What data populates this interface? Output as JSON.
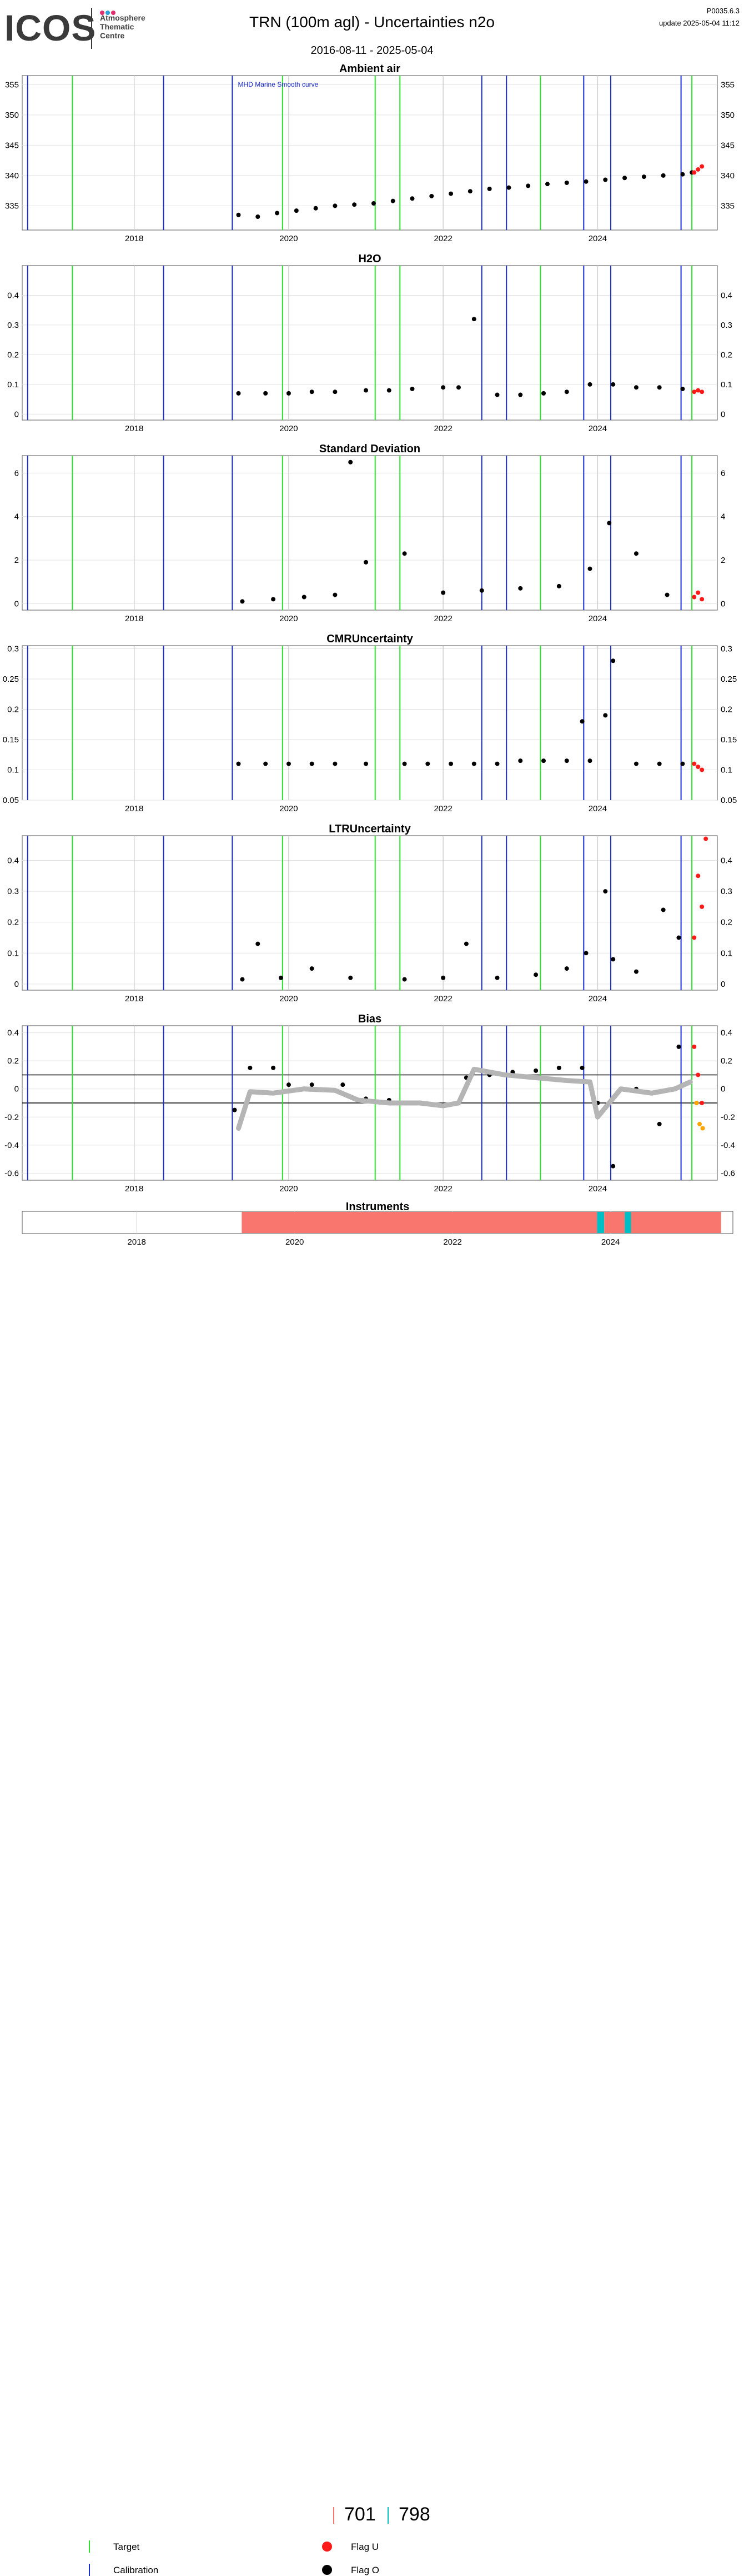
{
  "header": {
    "logo_text": "ICOS",
    "logo_subtitle": "Atmosphere\nThematic\nCentre",
    "title": "TRN  (100m agl) - Uncertainties n2o",
    "date_range": "2016-08-11 - 2025-05-04",
    "version": "P0035.6.3",
    "update": "update  2025-05-04 11:12"
  },
  "colors": {
    "target": "#2ee02e",
    "calibration": "#1a2ccc",
    "flag_u": "#ff1a1a",
    "flag_o": "#000000",
    "bias_smooth": "#b5b5b5",
    "bias_orange": "#ffa500",
    "instrument_701": "#f8766d",
    "instrument_798": "#00bfc4"
  },
  "x_axis": {
    "ticks": [
      2018,
      2020,
      2022,
      2024
    ],
    "range": [
      2016.55,
      2025.55
    ]
  },
  "markers": {
    "calibration": [
      2016.62,
      2018.38,
      2019.27,
      2022.5,
      2022.82,
      2023.82,
      2024.17,
      2025.08
    ],
    "target": [
      2017.2,
      2019.92,
      2021.12,
      2021.44,
      2023.26,
      2025.22
    ]
  },
  "chart_data": [
    {
      "type": "scatter",
      "title": "Ambient air",
      "annotation": "MHD Marine Smooth curve",
      "ylim": [
        331,
        356.5
      ],
      "yticks": [
        335,
        340,
        345,
        350,
        355
      ],
      "grid": true,
      "series": [
        {
          "name": "Flag O",
          "x": [
            2019.35,
            2019.6,
            2019.85,
            2020.1,
            2020.35,
            2020.6,
            2020.85,
            2021.1,
            2021.35,
            2021.6,
            2021.85,
            2022.1,
            2022.35,
            2022.6,
            2022.85,
            2023.1,
            2023.35,
            2023.6,
            2023.85,
            2024.1,
            2024.35,
            2024.6,
            2024.85,
            2025.1,
            2025.22
          ],
          "y": [
            333.5,
            333.2,
            333.8,
            334.2,
            334.6,
            335.0,
            335.2,
            335.4,
            335.8,
            336.2,
            336.6,
            337.0,
            337.4,
            337.8,
            338.0,
            338.3,
            338.6,
            338.8,
            339.0,
            339.3,
            339.6,
            339.8,
            340.0,
            340.2,
            340.5
          ]
        },
        {
          "name": "Flag U",
          "x": [
            2025.25,
            2025.3,
            2025.35
          ],
          "y": [
            340.5,
            341.0,
            341.5
          ]
        }
      ]
    },
    {
      "type": "scatter",
      "title": "H2O",
      "ylim": [
        -0.02,
        0.5
      ],
      "yticks": [
        0.0,
        0.1,
        0.2,
        0.3,
        0.4
      ],
      "grid": true,
      "series": [
        {
          "name": "Flag O",
          "x": [
            2019.35,
            2019.7,
            2020.0,
            2020.3,
            2020.6,
            2021.0,
            2021.3,
            2021.6,
            2022.0,
            2022.2,
            2022.4,
            2022.7,
            2023.0,
            2023.3,
            2023.6,
            2023.9,
            2024.2,
            2024.5,
            2024.8,
            2025.1
          ],
          "y": [
            0.07,
            0.07,
            0.07,
            0.075,
            0.075,
            0.08,
            0.08,
            0.085,
            0.09,
            0.09,
            0.32,
            0.065,
            0.065,
            0.07,
            0.075,
            0.1,
            0.1,
            0.09,
            0.09,
            0.085
          ]
        },
        {
          "name": "Flag U",
          "x": [
            2025.25,
            2025.3,
            2025.35
          ],
          "y": [
            0.075,
            0.08,
            0.075
          ]
        }
      ]
    },
    {
      "type": "scatter",
      "title": "Standard Deviation",
      "ylim": [
        -0.3,
        6.8
      ],
      "yticks": [
        0,
        2,
        4,
        6
      ],
      "grid": true,
      "series": [
        {
          "name": "Flag O",
          "x": [
            2019.4,
            2019.8,
            2020.2,
            2020.6,
            2020.8,
            2021.0,
            2021.5,
            2022.0,
            2022.5,
            2023.0,
            2023.5,
            2023.9,
            2024.15,
            2024.5,
            2024.9
          ],
          "y": [
            0.1,
            0.2,
            0.3,
            0.4,
            6.5,
            1.9,
            2.3,
            0.5,
            0.6,
            0.7,
            0.8,
            1.6,
            3.7,
            2.3,
            0.4
          ]
        },
        {
          "name": "Flag U",
          "x": [
            2025.25,
            2025.3,
            2025.35
          ],
          "y": [
            0.3,
            0.5,
            0.2
          ]
        }
      ]
    },
    {
      "type": "scatter",
      "title": "CMRUncertainty",
      "ylim": [
        0.05,
        0.305
      ],
      "yticks": [
        0.05,
        0.1,
        0.15,
        0.2,
        0.25,
        0.3
      ],
      "grid": true,
      "series": [
        {
          "name": "Flag O",
          "x": [
            2019.35,
            2019.7,
            2020.0,
            2020.3,
            2020.6,
            2021.0,
            2021.5,
            2021.8,
            2022.1,
            2022.4,
            2022.7,
            2023.0,
            2023.3,
            2023.6,
            2023.8,
            2023.9,
            2024.1,
            2024.2,
            2024.5,
            2024.8,
            2025.1
          ],
          "y": [
            0.11,
            0.11,
            0.11,
            0.11,
            0.11,
            0.11,
            0.11,
            0.11,
            0.11,
            0.11,
            0.11,
            0.115,
            0.115,
            0.115,
            0.18,
            0.115,
            0.19,
            0.28,
            0.11,
            0.11,
            0.11
          ]
        },
        {
          "name": "Flag U",
          "x": [
            2025.25,
            2025.3,
            2025.35
          ],
          "y": [
            0.11,
            0.105,
            0.1
          ]
        }
      ]
    },
    {
      "type": "scatter",
      "title": "LTRUncertainty",
      "ylim": [
        -0.02,
        0.48
      ],
      "yticks": [
        0.0,
        0.1,
        0.2,
        0.3,
        0.4
      ],
      "grid": true,
      "series": [
        {
          "name": "Flag O",
          "x": [
            2019.4,
            2019.6,
            2019.9,
            2020.3,
            2020.8,
            2021.5,
            2022.0,
            2022.3,
            2022.7,
            2023.2,
            2023.6,
            2023.85,
            2024.1,
            2024.2,
            2024.5,
            2024.85,
            2025.05
          ],
          "y": [
            0.015,
            0.13,
            0.02,
            0.05,
            0.02,
            0.015,
            0.02,
            0.13,
            0.02,
            0.03,
            0.05,
            0.1,
            0.3,
            0.08,
            0.04,
            0.24,
            0.15
          ]
        },
        {
          "name": "Flag U",
          "x": [
            2025.25,
            2025.3,
            2025.35,
            2025.4
          ],
          "y": [
            0.15,
            0.35,
            0.25,
            0.47
          ]
        }
      ]
    },
    {
      "type": "scatter",
      "title": "Bias",
      "ylim": [
        -0.65,
        0.45
      ],
      "yticks": [
        -0.6,
        -0.4,
        -0.2,
        0.0,
        0.2,
        0.4
      ],
      "reference_lines": [
        0.1,
        -0.1
      ],
      "grid": true,
      "series": [
        {
          "name": "Flag O",
          "x": [
            2019.3,
            2019.5,
            2019.8,
            2020.0,
            2020.3,
            2020.7,
            2021.0,
            2021.3,
            2021.7,
            2022.0,
            2022.3,
            2022.6,
            2022.9,
            2023.2,
            2023.5,
            2023.8,
            2024.0,
            2024.2,
            2024.5,
            2024.8,
            2025.05
          ],
          "y": [
            -0.15,
            0.15,
            0.15,
            0.03,
            0.03,
            0.03,
            -0.07,
            -0.08,
            -0.1,
            -0.12,
            0.08,
            0.1,
            0.12,
            0.13,
            0.15,
            0.15,
            -0.1,
            -0.55,
            0.0,
            -0.25,
            0.3
          ]
        },
        {
          "name": "Smooth",
          "x": [
            2019.35,
            2019.5,
            2019.8,
            2020.2,
            2020.6,
            2020.9,
            2021.3,
            2021.7,
            2022.0,
            2022.2,
            2022.4,
            2022.8,
            2023.2,
            2023.6,
            2023.9,
            2024.0,
            2024.3,
            2024.7,
            2025.0,
            2025.2
          ],
          "y": [
            -0.28,
            -0.02,
            -0.03,
            0.0,
            -0.01,
            -0.08,
            -0.1,
            -0.1,
            -0.12,
            -0.1,
            0.14,
            0.1,
            0.08,
            0.06,
            0.05,
            -0.2,
            0.0,
            -0.03,
            0.0,
            0.05
          ]
        },
        {
          "name": "Flag U",
          "x": [
            2025.25,
            2025.3,
            2025.35
          ],
          "y": [
            0.3,
            0.1,
            -0.1
          ]
        },
        {
          "name": "Orange",
          "x": [
            2025.28,
            2025.32,
            2025.36
          ],
          "y": [
            -0.1,
            -0.25,
            -0.28
          ]
        }
      ]
    }
  ],
  "instruments": {
    "title": "Instruments",
    "segments": [
      {
        "name": "701",
        "from": 2019.33,
        "to": 2023.83
      },
      {
        "name": "798",
        "from": 2023.83,
        "to": 2023.92
      },
      {
        "name": "701",
        "from": 2023.92,
        "to": 2024.18
      },
      {
        "name": "798",
        "from": 2024.18,
        "to": 2024.26
      },
      {
        "name": "701",
        "from": 2024.26,
        "to": 2025.4
      }
    ],
    "ticks": [
      2018,
      2020,
      2022,
      2024
    ],
    "range": [
      2016.55,
      2025.55
    ]
  },
  "legend": {
    "instrument_701": "701",
    "instrument_798": "798",
    "target": "Target",
    "calibration": "Calibration",
    "flag_u": "Flag U",
    "flag_o": "Flag O"
  }
}
